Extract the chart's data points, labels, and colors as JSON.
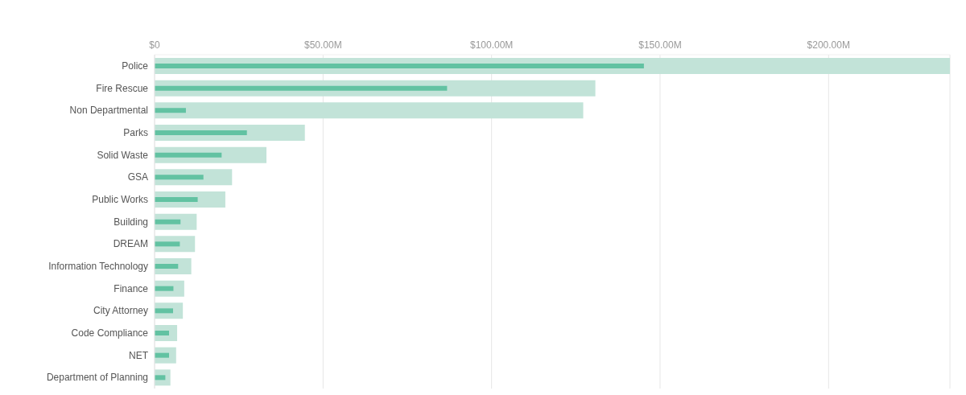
{
  "chart_data": {
    "type": "bar",
    "orientation": "horizontal",
    "categories": [
      "Police",
      "Fire Rescue",
      "Non Departmental",
      "Parks",
      "Solid Waste",
      "GSA",
      "Public Works",
      "Building",
      "DREAM",
      "Information Technology",
      "Finance",
      "City Attorney",
      "Code Compliance",
      "NET",
      "Department of Planning"
    ],
    "series": [
      {
        "color": "#c2e3d8",
        "values": [
          236,
          130.8,
          127.2,
          44.6,
          33.2,
          23.0,
          21.0,
          12.5,
          12.0,
          10.9,
          8.8,
          8.4,
          6.7,
          6.4,
          4.7
        ]
      },
      {
        "color": "#62c2a2",
        "values": [
          145.2,
          86.8,
          9.3,
          27.4,
          19.9,
          14.5,
          12.8,
          7.7,
          7.5,
          7.0,
          5.6,
          5.5,
          4.3,
          4.3,
          3.2
        ]
      }
    ],
    "xlim": [
      0,
      236
    ],
    "xticks": [
      {
        "value": 0,
        "label": "$0"
      },
      {
        "value": 50,
        "label": "$50.00M"
      },
      {
        "value": 100,
        "label": "$100.00M"
      },
      {
        "value": 150,
        "label": "$150.00M"
      },
      {
        "value": 200,
        "label": "$200.00M"
      }
    ],
    "grid": "x",
    "legend": false
  }
}
